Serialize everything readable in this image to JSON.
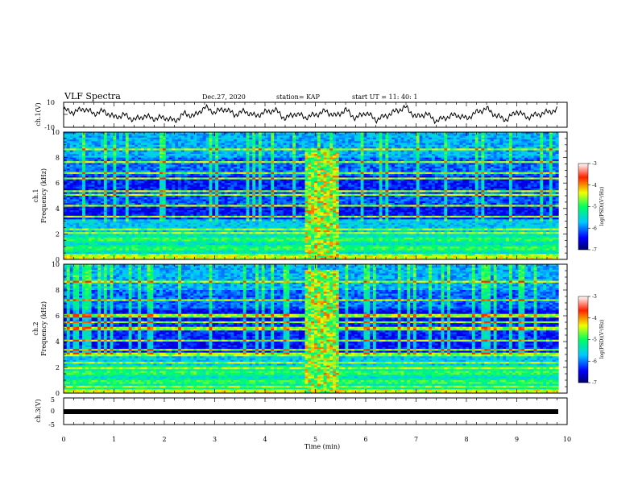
{
  "header": {
    "title": "VLF Spectra",
    "date": "Dec.27, 2020",
    "station": "station= KAP",
    "start_ut": "start  UT =   11: 40: 1"
  },
  "chart_data": [
    {
      "type": "line",
      "panel": "ch1-waveform",
      "ylabel": "ch.1(V)",
      "ylim": [
        -10,
        10
      ],
      "ytick_labels": [
        "10",
        "-10"
      ],
      "xlim": [
        0,
        10
      ],
      "series": [
        {
          "x": [
            0,
            0.2,
            0.4,
            0.6,
            0.8,
            1.0,
            1.2,
            1.4,
            1.6,
            1.8,
            2.0,
            2.2,
            2.4,
            2.6,
            2.8,
            3.0,
            3.2,
            3.4,
            3.6,
            3.8,
            4.0,
            4.2,
            4.4,
            4.6,
            4.8,
            5.0,
            5.2,
            5.4,
            5.6,
            5.8,
            6.0,
            6.2,
            6.4,
            6.6,
            6.8,
            7.0,
            7.2,
            7.4,
            7.6,
            7.8,
            8.0,
            8.2,
            8.4,
            8.6,
            8.8,
            9.0,
            9.2,
            9.4,
            9.6,
            9.8
          ],
          "values": [
            4,
            2,
            5,
            1,
            3,
            -2,
            0,
            -4,
            -1,
            -3,
            -2,
            -5,
            1,
            -1,
            6,
            2,
            5,
            0,
            3,
            -1,
            2,
            4,
            -3,
            1,
            -2,
            0,
            3,
            -1,
            4,
            -3,
            2,
            -4,
            -1,
            3,
            6,
            -2,
            1,
            -5,
            -2,
            0,
            -3,
            2,
            5,
            -1,
            -4,
            3,
            -2,
            0,
            2,
            4
          ]
        }
      ]
    },
    {
      "type": "heatmap",
      "panel": "ch1-spectrogram",
      "ylabel": "ch.1",
      "ylabel2": "Frequency (kHz)",
      "xlim": [
        0,
        10
      ],
      "ylim": [
        0,
        10
      ],
      "ytick_labels": [
        "0",
        "2",
        "4",
        "6",
        "8",
        "10"
      ],
      "colorbar": {
        "label": "log(PSD)(V²/Hz)",
        "range": [
          -7,
          -3
        ],
        "tick_labels": [
          "-3",
          "-4",
          "-5",
          "-6",
          "-7"
        ]
      }
    },
    {
      "type": "heatmap",
      "panel": "ch2-spectrogram",
      "ylabel": "ch.2",
      "ylabel2": "Frequency (kHz)",
      "xlim": [
        0,
        10
      ],
      "ylim": [
        0,
        10
      ],
      "ytick_labels": [
        "0",
        "2",
        "4",
        "6",
        "8",
        "10"
      ],
      "colorbar": {
        "label": "log(PSD)(V²/Hz)",
        "range": [
          -7,
          -3
        ],
        "tick_labels": [
          "-3",
          "-4",
          "-5",
          "-6",
          "-7"
        ]
      }
    },
    {
      "type": "line",
      "panel": "ch3-waveform",
      "ylabel": "ch.3(V)",
      "ylim": [
        -5,
        5
      ],
      "ytick_labels": [
        "5",
        "0",
        "-5"
      ],
      "xlim": [
        0,
        10
      ],
      "series": [
        {
          "x": [
            0,
            9.8
          ],
          "values": [
            0,
            0
          ]
        }
      ]
    }
  ],
  "x_axis": {
    "label": "Time (min)",
    "tick_labels": [
      "0",
      "1",
      "2",
      "3",
      "4",
      "5",
      "6",
      "7",
      "8",
      "9",
      "10"
    ]
  }
}
